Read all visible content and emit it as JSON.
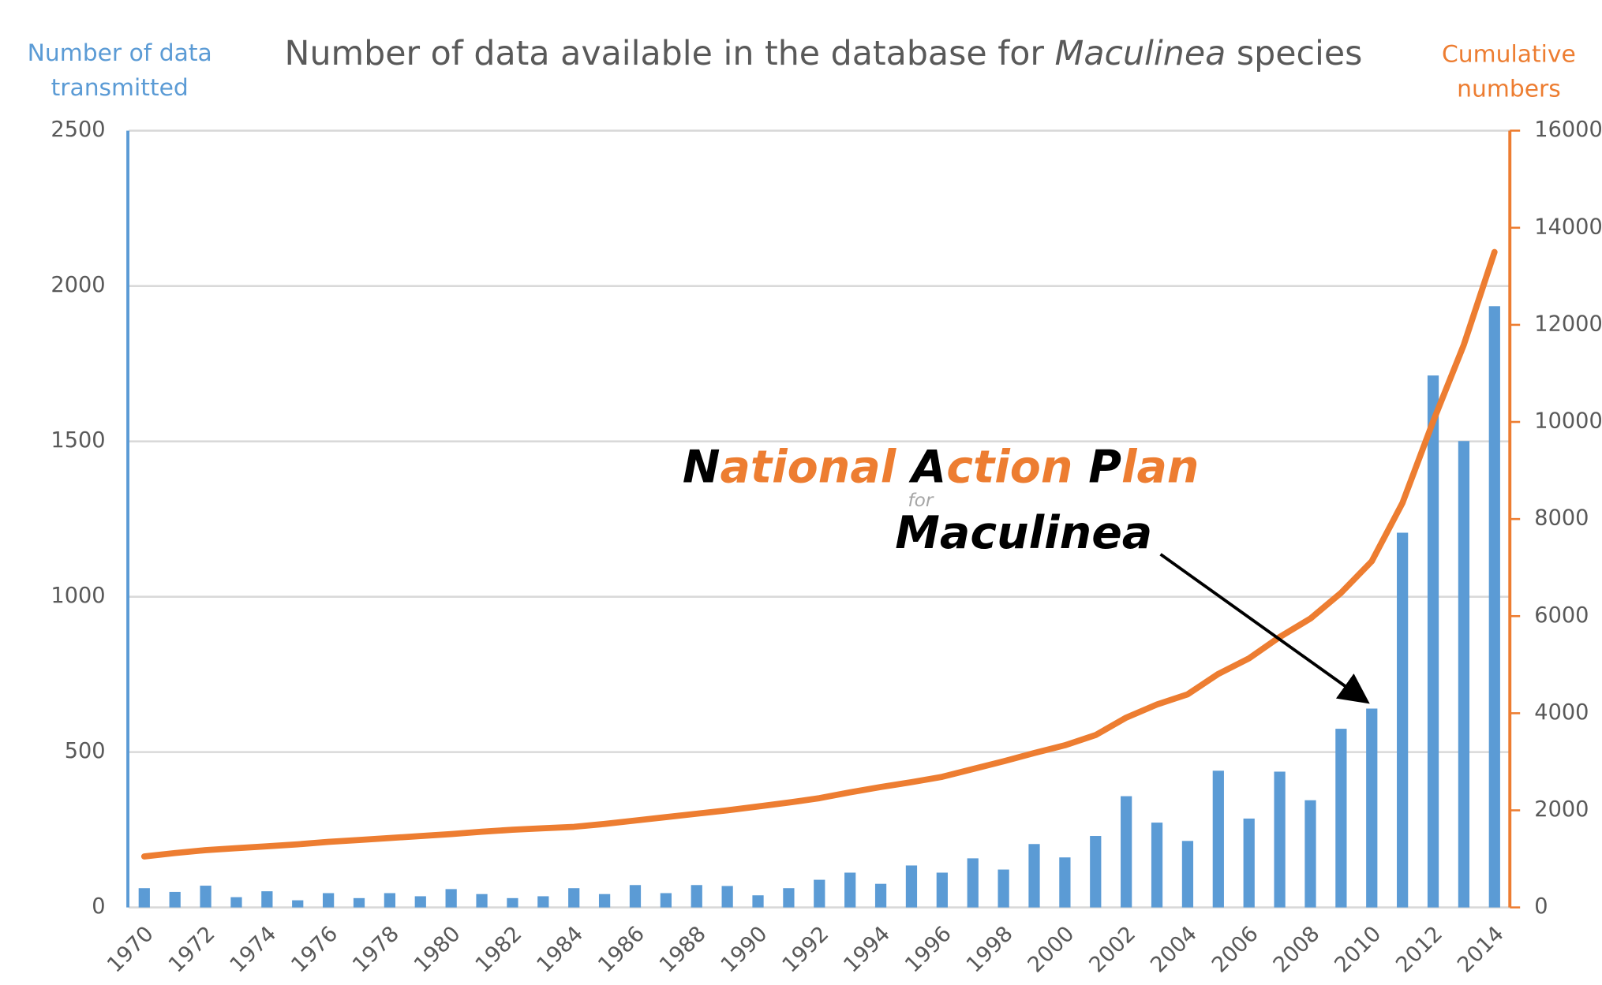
{
  "chart_data": {
    "type": "bar_line",
    "title": [
      "Number of data available in the database for ",
      "Maculinea",
      " species"
    ],
    "y_axis_label": [
      "Number of data",
      "transmitted"
    ],
    "y2_axis_label": [
      "Cumulative",
      "numbers"
    ],
    "annotation": [
      "National Action Plan",
      "for",
      "Maculinea"
    ],
    "categories": [
      "1970",
      null,
      "1972",
      null,
      "1974",
      null,
      "1976",
      null,
      "1978",
      null,
      "1980",
      null,
      "1982",
      null,
      "1984",
      null,
      "1986",
      null,
      "1988",
      null,
      "1990",
      null,
      "1992",
      null,
      "1994",
      null,
      "1996",
      null,
      "1998",
      null,
      "2000",
      null,
      "2002",
      null,
      "2004",
      null,
      "2006",
      null,
      "2008",
      null,
      "2010",
      null,
      "2012",
      null,
      "2014"
    ],
    "series": [
      {
        "name": "Number of data transmitted",
        "color": "#5b9bd5",
        "kind": "bar",
        "values": [
          62,
          50,
          70,
          33,
          52,
          23,
          46,
          30,
          46,
          36,
          59,
          43,
          30,
          36,
          62,
          43,
          72,
          46,
          72,
          69,
          39,
          62,
          89,
          112,
          76,
          135,
          112,
          158,
          122,
          204,
          161,
          230,
          358,
          273,
          214,
          440,
          286,
          437,
          345,
          575,
          640,
          1206,
          1712,
          1501,
          1935
        ]
      },
      {
        "name": "Cumulative numbers",
        "color": "#ed7d31",
        "kind": "line",
        "axis": "y2",
        "values": [
          1050,
          1120,
          1180,
          1220,
          1260,
          1300,
          1350,
          1390,
          1430,
          1470,
          1510,
          1560,
          1600,
          1630,
          1660,
          1720,
          1790,
          1860,
          1930,
          2000,
          2080,
          2160,
          2250,
          2370,
          2480,
          2580,
          2690,
          2850,
          3010,
          3180,
          3340,
          3550,
          3910,
          4180,
          4390,
          4810,
          5130,
          5570,
          5950,
          6480,
          7130,
          8330,
          10010,
          11590,
          13500
        ]
      }
    ],
    "ylim": [
      0,
      2500
    ],
    "yticks": [
      0,
      500,
      1000,
      1500,
      2000,
      2500
    ],
    "y2lim": [
      0,
      16000
    ],
    "y2ticks": [
      0,
      2000,
      4000,
      6000,
      8000,
      10000,
      12000,
      14000,
      16000
    ],
    "grid": true
  }
}
